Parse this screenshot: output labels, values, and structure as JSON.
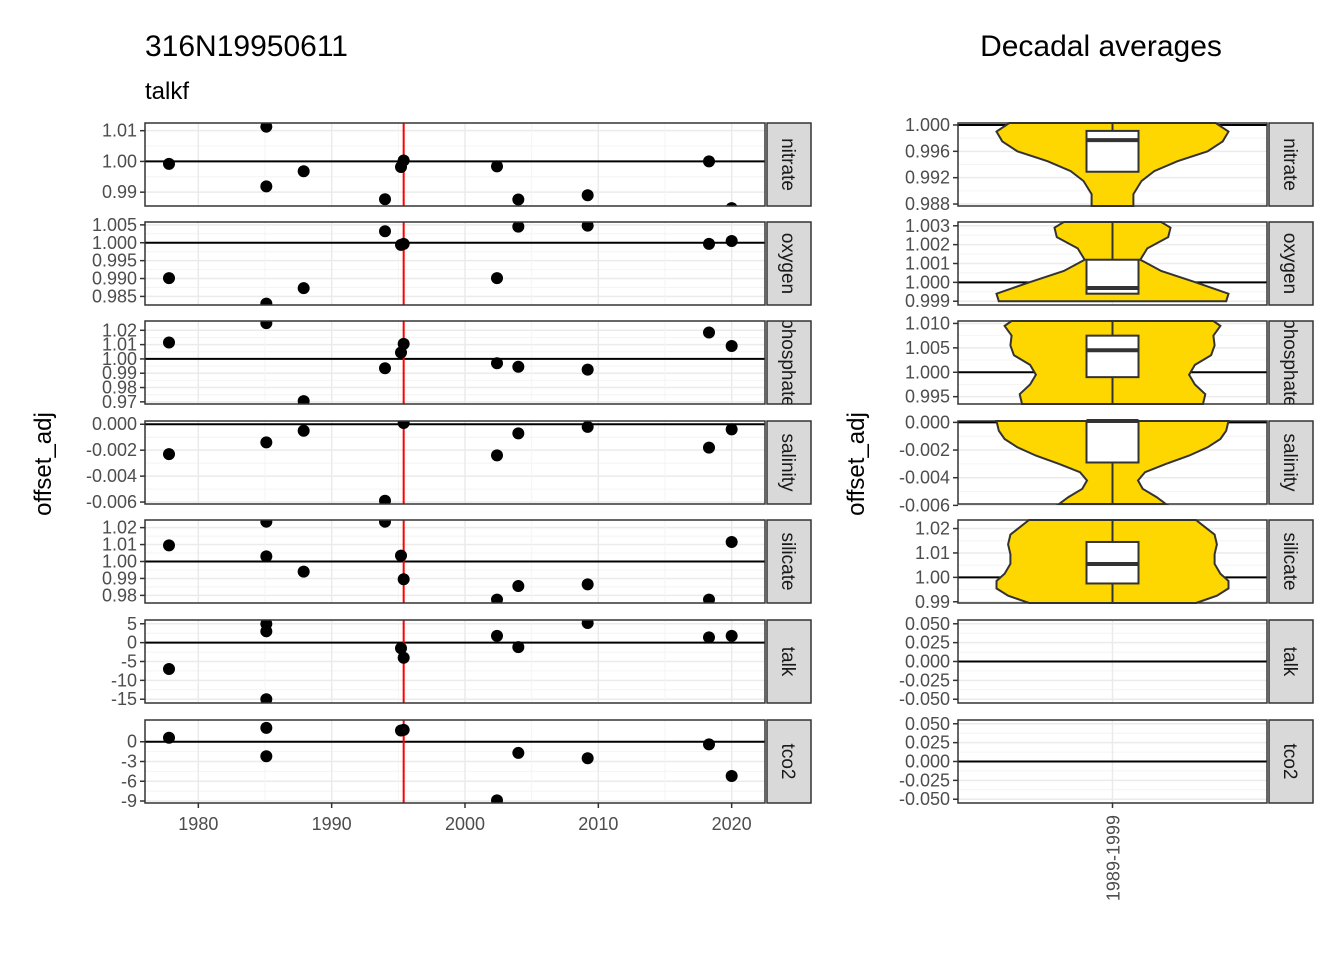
{
  "header": {
    "title": "316N19950611",
    "subtitle": "talkf"
  },
  "colors": {
    "marker": "#000000",
    "crossover_line": "#ff0000",
    "violin_fill": "#ffd700",
    "strip_bg": "#d9d9d9"
  },
  "chart_data": [
    {
      "type": "scatter",
      "title": "316N19950611",
      "subtitle": "talkf",
      "xlabel": "",
      "ylabel": "offset_adj",
      "xlim": [
        1976,
        2022.5
      ],
      "xticks": [
        1980,
        1990,
        2000,
        2010,
        2020
      ],
      "vline_x": 1995.4,
      "grid": true,
      "legend": "none",
      "panels": [
        {
          "name": "nitrate",
          "ylim": [
            0.9855,
            1.0125
          ],
          "yticks": [
            0.99,
            1.0,
            1.01
          ],
          "yticklabels": [
            "0.99",
            "1.00",
            "1.01"
          ],
          "hline": 1.0,
          "x": [
            1977.8,
            1985.1,
            1985.1,
            1987.9,
            1994.0,
            1995.2,
            1995.4,
            2002.4,
            2004.0,
            2009.2,
            2018.3,
            2020.0
          ],
          "y": [
            0.9992,
            1.0113,
            0.9919,
            0.9968,
            0.9877,
            0.9982,
            1.0003,
            0.9984,
            0.9876,
            0.989,
            1.0,
            0.9848
          ]
        },
        {
          "name": "oxygen",
          "ylim": [
            0.9826,
            1.0058
          ],
          "yticks": [
            0.985,
            0.99,
            0.995,
            1.0,
            1.005
          ],
          "yticklabels": [
            "0.985",
            "0.990",
            "0.995",
            "1.000",
            "1.005"
          ],
          "hline": 1.0,
          "x": [
            1977.8,
            1985.1,
            1987.9,
            1994.0,
            1995.2,
            1995.4,
            2002.4,
            2004.0,
            2009.2,
            2018.3,
            2020.0
          ],
          "y": [
            0.9901,
            0.983,
            0.9873,
            1.0032,
            0.9994,
            0.9997,
            0.9901,
            1.0045,
            1.0048,
            0.9997,
            1.0005
          ]
        },
        {
          "name": "phosphate",
          "ylim": [
            0.9685,
            1.0265
          ],
          "yticks": [
            0.97,
            0.98,
            0.99,
            1.0,
            1.01,
            1.02
          ],
          "yticklabels": [
            "0.97",
            "0.98",
            "0.99",
            "1.00",
            "1.01",
            "1.02"
          ],
          "hline": 1.0,
          "x": [
            1977.8,
            1985.1,
            1987.9,
            1994.0,
            1995.2,
            1995.4,
            2002.4,
            2004.0,
            2009.2,
            2018.3,
            2020.0
          ],
          "y": [
            1.0115,
            1.025,
            0.9705,
            0.9935,
            1.0045,
            1.0105,
            0.997,
            0.9945,
            0.9925,
            1.0185,
            1.009
          ]
        },
        {
          "name": "salinity",
          "ylim": [
            -0.00615,
            0.00025
          ],
          "yticks": [
            -0.006,
            -0.004,
            -0.002,
            0.0
          ],
          "yticklabels": [
            "-0.006",
            "-0.004",
            "-0.002",
            "0.000"
          ],
          "hline": 0.0,
          "x": [
            1977.8,
            1985.1,
            1987.9,
            1994.0,
            1995.4,
            2002.4,
            2004.0,
            2009.2,
            2018.3,
            2020.0
          ],
          "y": [
            -0.0023,
            -0.0014,
            -0.0005,
            -0.0059,
            0.0001,
            -0.0024,
            -0.0007,
            -0.0002,
            -0.0018,
            -0.0004
          ]
        },
        {
          "name": "silicate",
          "ylim": [
            0.9755,
            1.0245
          ],
          "yticks": [
            0.98,
            0.99,
            1.0,
            1.01,
            1.02
          ],
          "yticklabels": [
            "0.98",
            "0.99",
            "1.00",
            "1.01",
            "1.02"
          ],
          "hline": 1.0,
          "x": [
            1977.8,
            1985.1,
            1985.1,
            1987.9,
            1994.0,
            1995.2,
            1995.4,
            2002.4,
            2004.0,
            2009.2,
            2018.3,
            2020.0
          ],
          "y": [
            1.0095,
            1.0235,
            1.003,
            0.994,
            1.0235,
            1.0035,
            0.9895,
            0.9775,
            0.9855,
            0.9865,
            0.9775,
            1.0115
          ]
        },
        {
          "name": "talk",
          "ylim": [
            -16.0,
            6.0
          ],
          "yticks": [
            -15,
            -10,
            -5,
            0,
            5
          ],
          "yticklabels": [
            "-15",
            "-10",
            "-5",
            "0",
            "5"
          ],
          "hline": 0.0,
          "x": [
            1977.8,
            1985.1,
            1985.1,
            1985.1,
            1995.2,
            1995.4,
            2002.4,
            2004.0,
            2009.2,
            2018.3,
            2020.0
          ],
          "y": [
            -7.0,
            5.0,
            3.0,
            -15.0,
            -1.5,
            -4.0,
            1.8,
            -1.2,
            5.2,
            1.4,
            1.8
          ]
        },
        {
          "name": "tco2",
          "ylim": [
            -9.3,
            3.3
          ],
          "yticks": [
            -9,
            -6,
            -3,
            0
          ],
          "yticklabels": [
            "-9",
            "-6",
            "-3",
            "0"
          ],
          "hline": 0.0,
          "x": [
            1977.8,
            1985.1,
            1985.1,
            1995.2,
            1995.4,
            2002.4,
            2004.0,
            2009.2,
            2018.3,
            2020.0
          ],
          "y": [
            0.6,
            2.1,
            -2.2,
            1.7,
            1.8,
            -8.9,
            -1.7,
            -2.5,
            -0.4,
            -5.2
          ]
        }
      ]
    },
    {
      "type": "violin",
      "title": "Decadal averages",
      "xlabel": "",
      "ylabel": "offset_adj",
      "categories": [
        "1989-1999"
      ],
      "grid": true,
      "legend": "none",
      "panels": [
        {
          "name": "nitrate",
          "ylim": [
            0.9877,
            1.0003
          ],
          "yticks": [
            0.988,
            0.992,
            0.996,
            1.0
          ],
          "yticklabels": [
            "0.988",
            "0.992",
            "0.996",
            "1.000"
          ],
          "hline": 1.0,
          "box": {
            "lower": 0.9929,
            "q1": 0.9929,
            "median": 0.9977,
            "q3": 0.9991,
            "upper": 1.0003
          },
          "violin": [
            [
              0.9877,
              0.18
            ],
            [
              0.9895,
              0.18
            ],
            [
              0.9915,
              0.25
            ],
            [
              0.993,
              0.36
            ],
            [
              0.9945,
              0.56
            ],
            [
              0.996,
              0.82
            ],
            [
              0.9975,
              0.95
            ],
            [
              0.999,
              1.0
            ],
            [
              1.0003,
              0.89
            ]
          ]
        },
        {
          "name": "oxygen",
          "ylim": [
            0.9988,
            1.0032
          ],
          "yticks": [
            0.999,
            1.0,
            1.001,
            1.002,
            1.003
          ],
          "yticklabels": [
            "0.999",
            "1.000",
            "1.001",
            "1.002",
            "1.003"
          ],
          "hline": 1.0,
          "box": {
            "lower": 0.9994,
            "q1": 0.9994,
            "median": 0.9997,
            "q3": 1.0012,
            "upper": 1.0032
          },
          "violin": [
            [
              0.999,
              0.98
            ],
            [
              0.9994,
              1.0
            ],
            [
              1.0,
              0.72
            ],
            [
              1.0006,
              0.42
            ],
            [
              1.0012,
              0.24
            ],
            [
              1.0018,
              0.3
            ],
            [
              1.0024,
              0.48
            ],
            [
              1.0029,
              0.5
            ],
            [
              1.0032,
              0.42
            ]
          ]
        },
        {
          "name": "phosphate",
          "ylim": [
            0.9935,
            1.0105
          ],
          "yticks": [
            0.995,
            1.0,
            1.005,
            1.01
          ],
          "yticklabels": [
            "0.995",
            "1.000",
            "1.005",
            "1.010"
          ],
          "hline": 1.0,
          "box": {
            "lower": 0.9935,
            "q1": 0.999,
            "median": 1.0045,
            "q3": 1.0075,
            "upper": 1.0105
          },
          "violin": [
            [
              0.9935,
              0.78
            ],
            [
              0.9955,
              0.8
            ],
            [
              0.9975,
              0.71
            ],
            [
              0.9995,
              0.66
            ],
            [
              1.0015,
              0.71
            ],
            [
              1.0035,
              0.85
            ],
            [
              1.0055,
              0.88
            ],
            [
              1.0075,
              0.87
            ],
            [
              1.0095,
              0.93
            ],
            [
              1.0105,
              0.87
            ]
          ]
        },
        {
          "name": "salinity",
          "ylim": [
            -0.0059,
            0.0001
          ],
          "yticks": [
            -0.006,
            -0.004,
            -0.002,
            0.0
          ],
          "yticklabels": [
            "-0.006",
            "-0.004",
            "-0.002",
            "0.000"
          ],
          "hline": 0.0,
          "box": {
            "lower": -0.0059,
            "q1": -0.0029,
            "median": 0.0001,
            "q3": 0.0001,
            "upper": 0.0001
          },
          "violin": [
            [
              -0.0059,
              0.46
            ],
            [
              -0.0054,
              0.38
            ],
            [
              -0.0048,
              0.26
            ],
            [
              -0.0042,
              0.22
            ],
            [
              -0.0036,
              0.28
            ],
            [
              -0.003,
              0.46
            ],
            [
              -0.0024,
              0.66
            ],
            [
              -0.0018,
              0.82
            ],
            [
              -0.0012,
              0.93
            ],
            [
              -0.0006,
              0.98
            ],
            [
              0.0001,
              1.0
            ]
          ]
        },
        {
          "name": "silicate",
          "ylim": [
            0.9895,
            1.0235
          ],
          "yticks": [
            0.99,
            1.0,
            1.01,
            1.02
          ],
          "yticklabels": [
            "0.99",
            "1.00",
            "1.01",
            "1.02"
          ],
          "hline": 1.0,
          "box": {
            "lower": 0.9895,
            "q1": 0.9975,
            "median": 1.0055,
            "q3": 1.0145,
            "upper": 1.0235
          },
          "violin": [
            [
              0.9895,
              0.72
            ],
            [
              0.9925,
              0.9
            ],
            [
              0.9955,
              1.0
            ],
            [
              0.9985,
              1.0
            ],
            [
              1.0015,
              0.93
            ],
            [
              1.0055,
              0.88
            ],
            [
              1.0095,
              0.88
            ],
            [
              1.0135,
              0.9
            ],
            [
              1.0175,
              0.88
            ],
            [
              1.0205,
              0.8
            ],
            [
              1.0235,
              0.72
            ]
          ]
        },
        {
          "name": "talk",
          "ylim": [
            -0.055,
            0.055
          ],
          "yticks": [
            -0.05,
            -0.025,
            0.0,
            0.025,
            0.05
          ],
          "yticklabels": [
            "-0.050",
            "-0.025",
            "0.000",
            "0.025",
            "0.050"
          ],
          "hline": 0.0
        },
        {
          "name": "tco2",
          "ylim": [
            -0.055,
            0.055
          ],
          "yticks": [
            -0.05,
            -0.025,
            0.0,
            0.025,
            0.05
          ],
          "yticklabels": [
            "-0.050",
            "-0.025",
            "0.000",
            "0.025",
            "0.050"
          ],
          "hline": 0.0
        }
      ]
    }
  ]
}
